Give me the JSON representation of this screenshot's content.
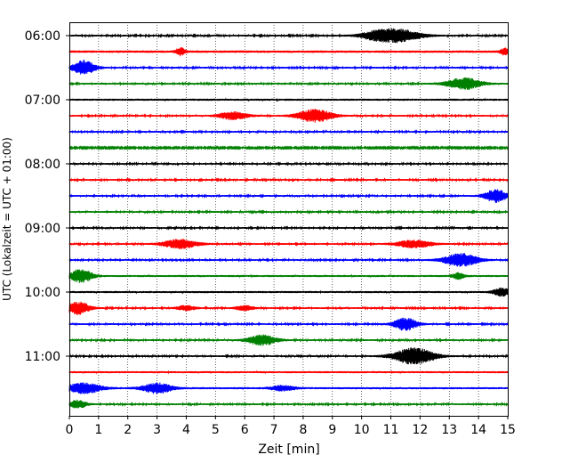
{
  "chart_data": {
    "type": "line",
    "title": "",
    "xlabel": "Zeit  [min]",
    "ylabel": "UTC (Lokalzeit = UTC + 01:00)",
    "xlim": [
      0,
      15
    ],
    "x_ticks": [
      0,
      1,
      2,
      3,
      4,
      5,
      6,
      7,
      8,
      9,
      10,
      11,
      12,
      13,
      14,
      15
    ],
    "y_tick_labels": [
      "06:00",
      "07:00",
      "08:00",
      "09:00",
      "10:00",
      "11:00"
    ],
    "x_grid": "dotted vertical lines at every minute",
    "trace_colors": [
      "#000000",
      "#ff0000",
      "#0000ff",
      "#008000"
    ],
    "traces": [
      {
        "start": "06:00",
        "color": "#000000",
        "amplitude": 0.3,
        "events": [
          {
            "t": 11.2,
            "amp": 1.0,
            "width": 0.8
          },
          {
            "t": 10.4,
            "amp": 0.4,
            "width": 0.5
          }
        ]
      },
      {
        "start": "06:15",
        "color": "#ff0000",
        "amplitude": 0.4,
        "events": [
          {
            "t": 3.8,
            "amp": 0.6,
            "width": 0.15
          },
          {
            "t": 14.9,
            "amp": 0.5,
            "width": 0.15
          }
        ]
      },
      {
        "start": "06:30",
        "color": "#0000ff",
        "amplitude": 0.3,
        "events": [
          {
            "t": 0.5,
            "amp": 1.1,
            "width": 0.4
          }
        ]
      },
      {
        "start": "06:45",
        "color": "#008000",
        "amplitude": 0.3,
        "events": [
          {
            "t": 13.5,
            "amp": 0.9,
            "width": 0.6
          }
        ]
      },
      {
        "start": "07:00",
        "color": "#000000",
        "amplitude": 0.35,
        "events": []
      },
      {
        "start": "07:15",
        "color": "#ff0000",
        "amplitude": 0.3,
        "events": [
          {
            "t": 5.6,
            "amp": 0.6,
            "width": 0.5
          },
          {
            "t": 8.4,
            "amp": 1.0,
            "width": 0.6
          }
        ]
      },
      {
        "start": "07:30",
        "color": "#0000ff",
        "amplitude": 0.3,
        "events": []
      },
      {
        "start": "07:45",
        "color": "#008000",
        "amplitude": 0.25,
        "events": []
      },
      {
        "start": "08:00",
        "color": "#000000",
        "amplitude": 0.3,
        "events": []
      },
      {
        "start": "08:15",
        "color": "#ff0000",
        "amplitude": 0.3,
        "events": []
      },
      {
        "start": "08:30",
        "color": "#0000ff",
        "amplitude": 0.3,
        "events": [
          {
            "t": 14.6,
            "amp": 1.0,
            "width": 0.4
          }
        ]
      },
      {
        "start": "08:45",
        "color": "#008000",
        "amplitude": 0.3,
        "events": []
      },
      {
        "start": "09:00",
        "color": "#000000",
        "amplitude": 0.3,
        "events": []
      },
      {
        "start": "09:15",
        "color": "#ff0000",
        "amplitude": 0.3,
        "events": [
          {
            "t": 3.8,
            "amp": 0.7,
            "width": 0.6
          },
          {
            "t": 11.8,
            "amp": 0.6,
            "width": 0.6
          }
        ]
      },
      {
        "start": "09:30",
        "color": "#0000ff",
        "amplitude": 0.3,
        "events": [
          {
            "t": 13.4,
            "amp": 1.0,
            "width": 0.6
          }
        ]
      },
      {
        "start": "09:45",
        "color": "#008000",
        "amplitude": 0.35,
        "events": [
          {
            "t": 0.4,
            "amp": 1.0,
            "width": 0.4
          },
          {
            "t": 13.3,
            "amp": 0.5,
            "width": 0.2
          }
        ]
      },
      {
        "start": "10:00",
        "color": "#000000",
        "amplitude": 0.35,
        "events": [
          {
            "t": 14.8,
            "amp": 0.6,
            "width": 0.3
          }
        ]
      },
      {
        "start": "10:15",
        "color": "#ff0000",
        "amplitude": 0.3,
        "events": [
          {
            "t": 0.3,
            "amp": 1.0,
            "width": 0.4
          },
          {
            "t": 4.0,
            "amp": 0.4,
            "width": 0.3
          },
          {
            "t": 6.0,
            "amp": 0.4,
            "width": 0.3
          }
        ]
      },
      {
        "start": "10:30",
        "color": "#0000ff",
        "amplitude": 0.3,
        "events": [
          {
            "t": 11.5,
            "amp": 1.0,
            "width": 0.4
          }
        ]
      },
      {
        "start": "10:45",
        "color": "#008000",
        "amplitude": 0.3,
        "events": [
          {
            "t": 6.6,
            "amp": 0.8,
            "width": 0.5
          }
        ]
      },
      {
        "start": "11:00",
        "color": "#000000",
        "amplitude": 0.3,
        "events": [
          {
            "t": 11.8,
            "amp": 1.3,
            "width": 0.7
          }
        ]
      },
      {
        "start": "11:15",
        "color": "#ff0000",
        "amplitude": 0.35,
        "events": []
      },
      {
        "start": "11:30",
        "color": "#0000ff",
        "amplitude": 0.35,
        "events": [
          {
            "t": 0.5,
            "amp": 0.8,
            "width": 0.6
          },
          {
            "t": 3.0,
            "amp": 0.8,
            "width": 0.5
          },
          {
            "t": 7.3,
            "amp": 0.4,
            "width": 0.4
          }
        ]
      },
      {
        "start": "11:45",
        "color": "#008000",
        "amplitude": 0.3,
        "events": [
          {
            "t": 0.3,
            "amp": 0.6,
            "width": 0.3
          }
        ]
      }
    ]
  }
}
